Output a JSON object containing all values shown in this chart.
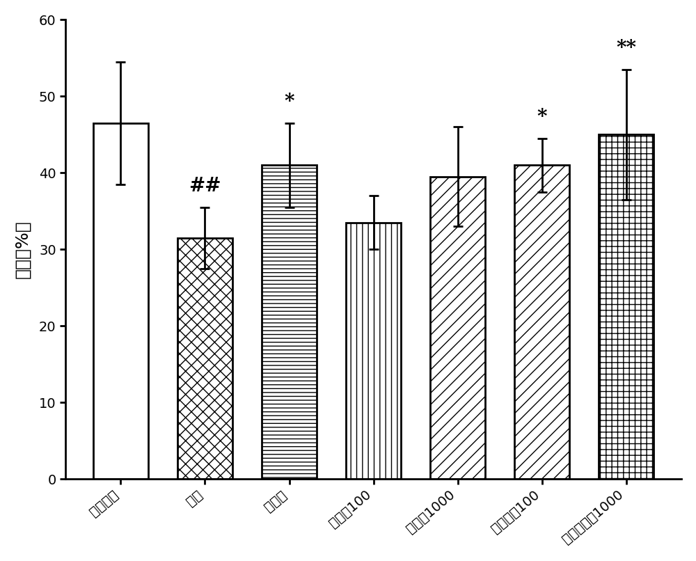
{
  "categories": [
    "生理盐水",
    "模型",
    "他克林",
    "盐酸盐100",
    "盐酸盐1000",
    "酒石酸盐100",
    "酒石酸盐盐1000"
  ],
  "values": [
    46.5,
    31.5,
    41.0,
    33.5,
    39.5,
    41.0,
    45.0
  ],
  "errors": [
    8.0,
    4.0,
    5.5,
    3.5,
    6.5,
    3.5,
    8.5
  ],
  "ylabel": "时间（%）",
  "ylim": [
    0,
    60
  ],
  "yticks": [
    0,
    10,
    20,
    30,
    40,
    50,
    60
  ],
  "annotations": [
    "",
    "##",
    "*",
    "",
    "",
    "*",
    "**"
  ],
  "hatch_patterns": [
    "",
    "xx",
    "===",
    "|||",
    "////",
    "////",
    "+++"
  ],
  "bar_colors": [
    "white",
    "white",
    "white",
    "white",
    "white",
    "white",
    "white"
  ],
  "bar_edgecolor": "black",
  "background_color": "white",
  "bar_width": 0.65,
  "linewidth": 2.0,
  "capsize": 5,
  "annotation_fontsize": 20,
  "ylabel_fontsize": 18,
  "tick_fontsize": 14,
  "spine_linewidth": 2.0
}
